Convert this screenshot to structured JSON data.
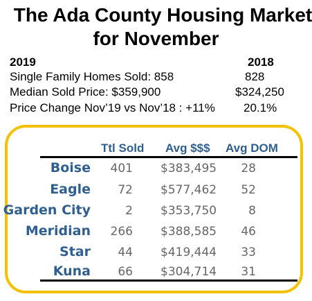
{
  "title_line1": "The Ada County Housing Market",
  "title_line2": "for November",
  "year_current": "2019",
  "year_prior": "2018",
  "stats": [
    {
      "label": "Single Family Homes Sold: 858",
      "prior": "828"
    },
    {
      "label": "Median Sold Price:  $359,900",
      "prior": "$324,250"
    },
    {
      "label": "Price Change Nov’19 vs Nov’18 :  +11%",
      "prior": "20.1%"
    }
  ],
  "table": {
    "headers": [
      "Ttl Sold",
      "Avg $$$",
      "Avg DOM"
    ],
    "rows": [
      {
        "city": "Boise",
        "sold": "401",
        "price": "$383,495",
        "dom": "28"
      },
      {
        "city": "Eagle",
        "sold": "72",
        "price": "$577,462",
        "dom": "52"
      },
      {
        "city": "Garden City",
        "sold": "2",
        "price": "$353,750",
        "dom": "8"
      },
      {
        "city": "Meridian",
        "sold": "266",
        "price": "$388,585",
        "dom": "46"
      },
      {
        "city": "Star",
        "sold": "44",
        "price": "$419,444",
        "dom": "33"
      },
      {
        "city": "Kuna",
        "sold": "66",
        "price": "$304,714",
        "dom": "31"
      }
    ]
  },
  "colors": {
    "accent": "#2f5f8f",
    "border": "#f2c200",
    "numbers": "#666666"
  }
}
